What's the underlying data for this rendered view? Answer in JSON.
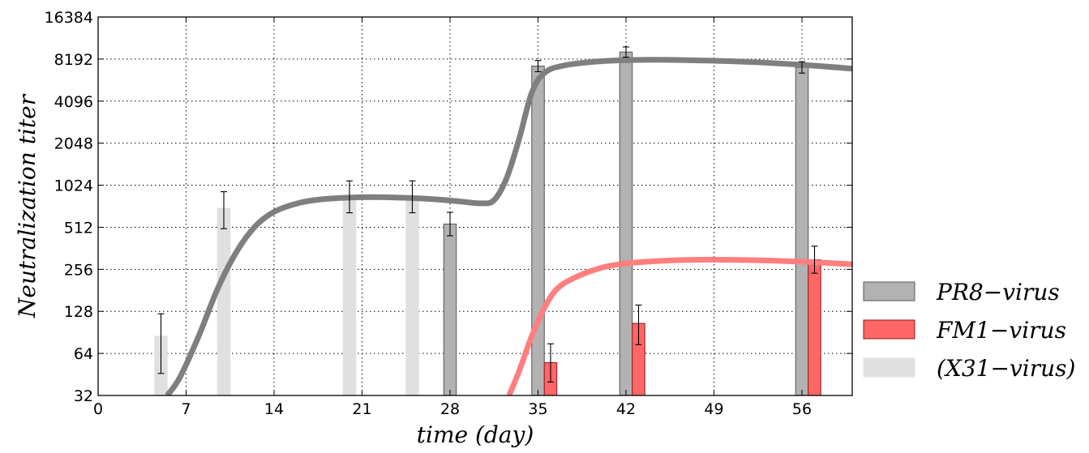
{
  "chart_data": {
    "type": "bar",
    "xlabel": "time (day)",
    "ylabel": "Neutralization  titer",
    "xlim": [
      0,
      60
    ],
    "ylim": [
      32,
      16384
    ],
    "yscale": "log2",
    "grid": true,
    "legend_position": "right-bottom-outside",
    "x_ticks": [
      "0",
      "7",
      "14",
      "21",
      "28",
      "35",
      "42",
      "49",
      "56"
    ],
    "x_tick_values": [
      0,
      7,
      14,
      21,
      28,
      35,
      42,
      49,
      56
    ],
    "y_ticks": [
      "32",
      "64",
      "128",
      "256",
      "512",
      "1024",
      "2048",
      "4096",
      "8192",
      "16384"
    ],
    "y_tick_values": [
      32,
      64,
      128,
      256,
      512,
      1024,
      2048,
      4096,
      8192,
      16384
    ],
    "bar_width_days": 1,
    "series": [
      {
        "name": "PR8−virus",
        "color": "#b2b2b2",
        "edge": "#555555",
        "points": [
          {
            "x": 28,
            "y": 540,
            "err_low": 445,
            "err_high": 655
          },
          {
            "x": 35,
            "y": 7300,
            "err_low": 6650,
            "err_high": 8000
          },
          {
            "x": 42,
            "y": 9200,
            "err_low": 8450,
            "err_high": 10000
          },
          {
            "x": 56,
            "y": 7150,
            "err_low": 6500,
            "err_high": 7850
          }
        ]
      },
      {
        "name": "FM1−virus",
        "color": "#ff6666",
        "edge": "#8b1a1a",
        "points": [
          {
            "x": 36,
            "y": 55,
            "err_low": 40,
            "err_high": 75
          },
          {
            "x": 43,
            "y": 105,
            "err_low": 74,
            "err_high": 142
          },
          {
            "x": 57,
            "y": 300,
            "err_low": 240,
            "err_high": 375
          }
        ]
      },
      {
        "name": "(X31−virus)",
        "color": "#e0e0e0",
        "edge": "#e0e0e0",
        "points": [
          {
            "x": 5,
            "y": 85,
            "err_low": 46,
            "err_high": 123
          },
          {
            "x": 10,
            "y": 700,
            "err_low": 500,
            "err_high": 920
          },
          {
            "x": 20,
            "y": 850,
            "err_low": 650,
            "err_high": 1100
          },
          {
            "x": 25,
            "y": 850,
            "err_low": 650,
            "err_high": 1100
          }
        ]
      }
    ],
    "curves": [
      {
        "series": "PR8−virus",
        "color": "#7f7f7f",
        "points": [
          [
            5.5,
            32
          ],
          [
            6.5,
            43
          ],
          [
            8,
            85
          ],
          [
            9.5,
            185
          ],
          [
            11,
            340
          ],
          [
            12.5,
            520
          ],
          [
            14,
            660
          ],
          [
            16,
            765
          ],
          [
            18,
            815
          ],
          [
            21,
            840
          ],
          [
            24,
            835
          ],
          [
            27,
            810
          ],
          [
            29,
            780
          ],
          [
            30.5,
            760
          ],
          [
            31.5,
            800
          ],
          [
            32.5,
            1150
          ],
          [
            33.5,
            2200
          ],
          [
            34.5,
            4700
          ],
          [
            35.5,
            6500
          ],
          [
            37,
            7350
          ],
          [
            40,
            7900
          ],
          [
            44,
            8100
          ],
          [
            48,
            8000
          ],
          [
            52,
            7800
          ],
          [
            56,
            7450
          ],
          [
            60,
            7000
          ]
        ]
      },
      {
        "series": "FM1−virus",
        "color": "#ff7f7f",
        "points": [
          [
            32.7,
            32
          ],
          [
            33.5,
            48
          ],
          [
            34.5,
            85
          ],
          [
            35.5,
            135
          ],
          [
            36.5,
            185
          ],
          [
            38,
            225
          ],
          [
            40,
            262
          ],
          [
            42,
            282
          ],
          [
            45,
            295
          ],
          [
            48,
            300
          ],
          [
            52,
            298
          ],
          [
            56,
            290
          ],
          [
            60,
            278
          ]
        ]
      }
    ]
  }
}
